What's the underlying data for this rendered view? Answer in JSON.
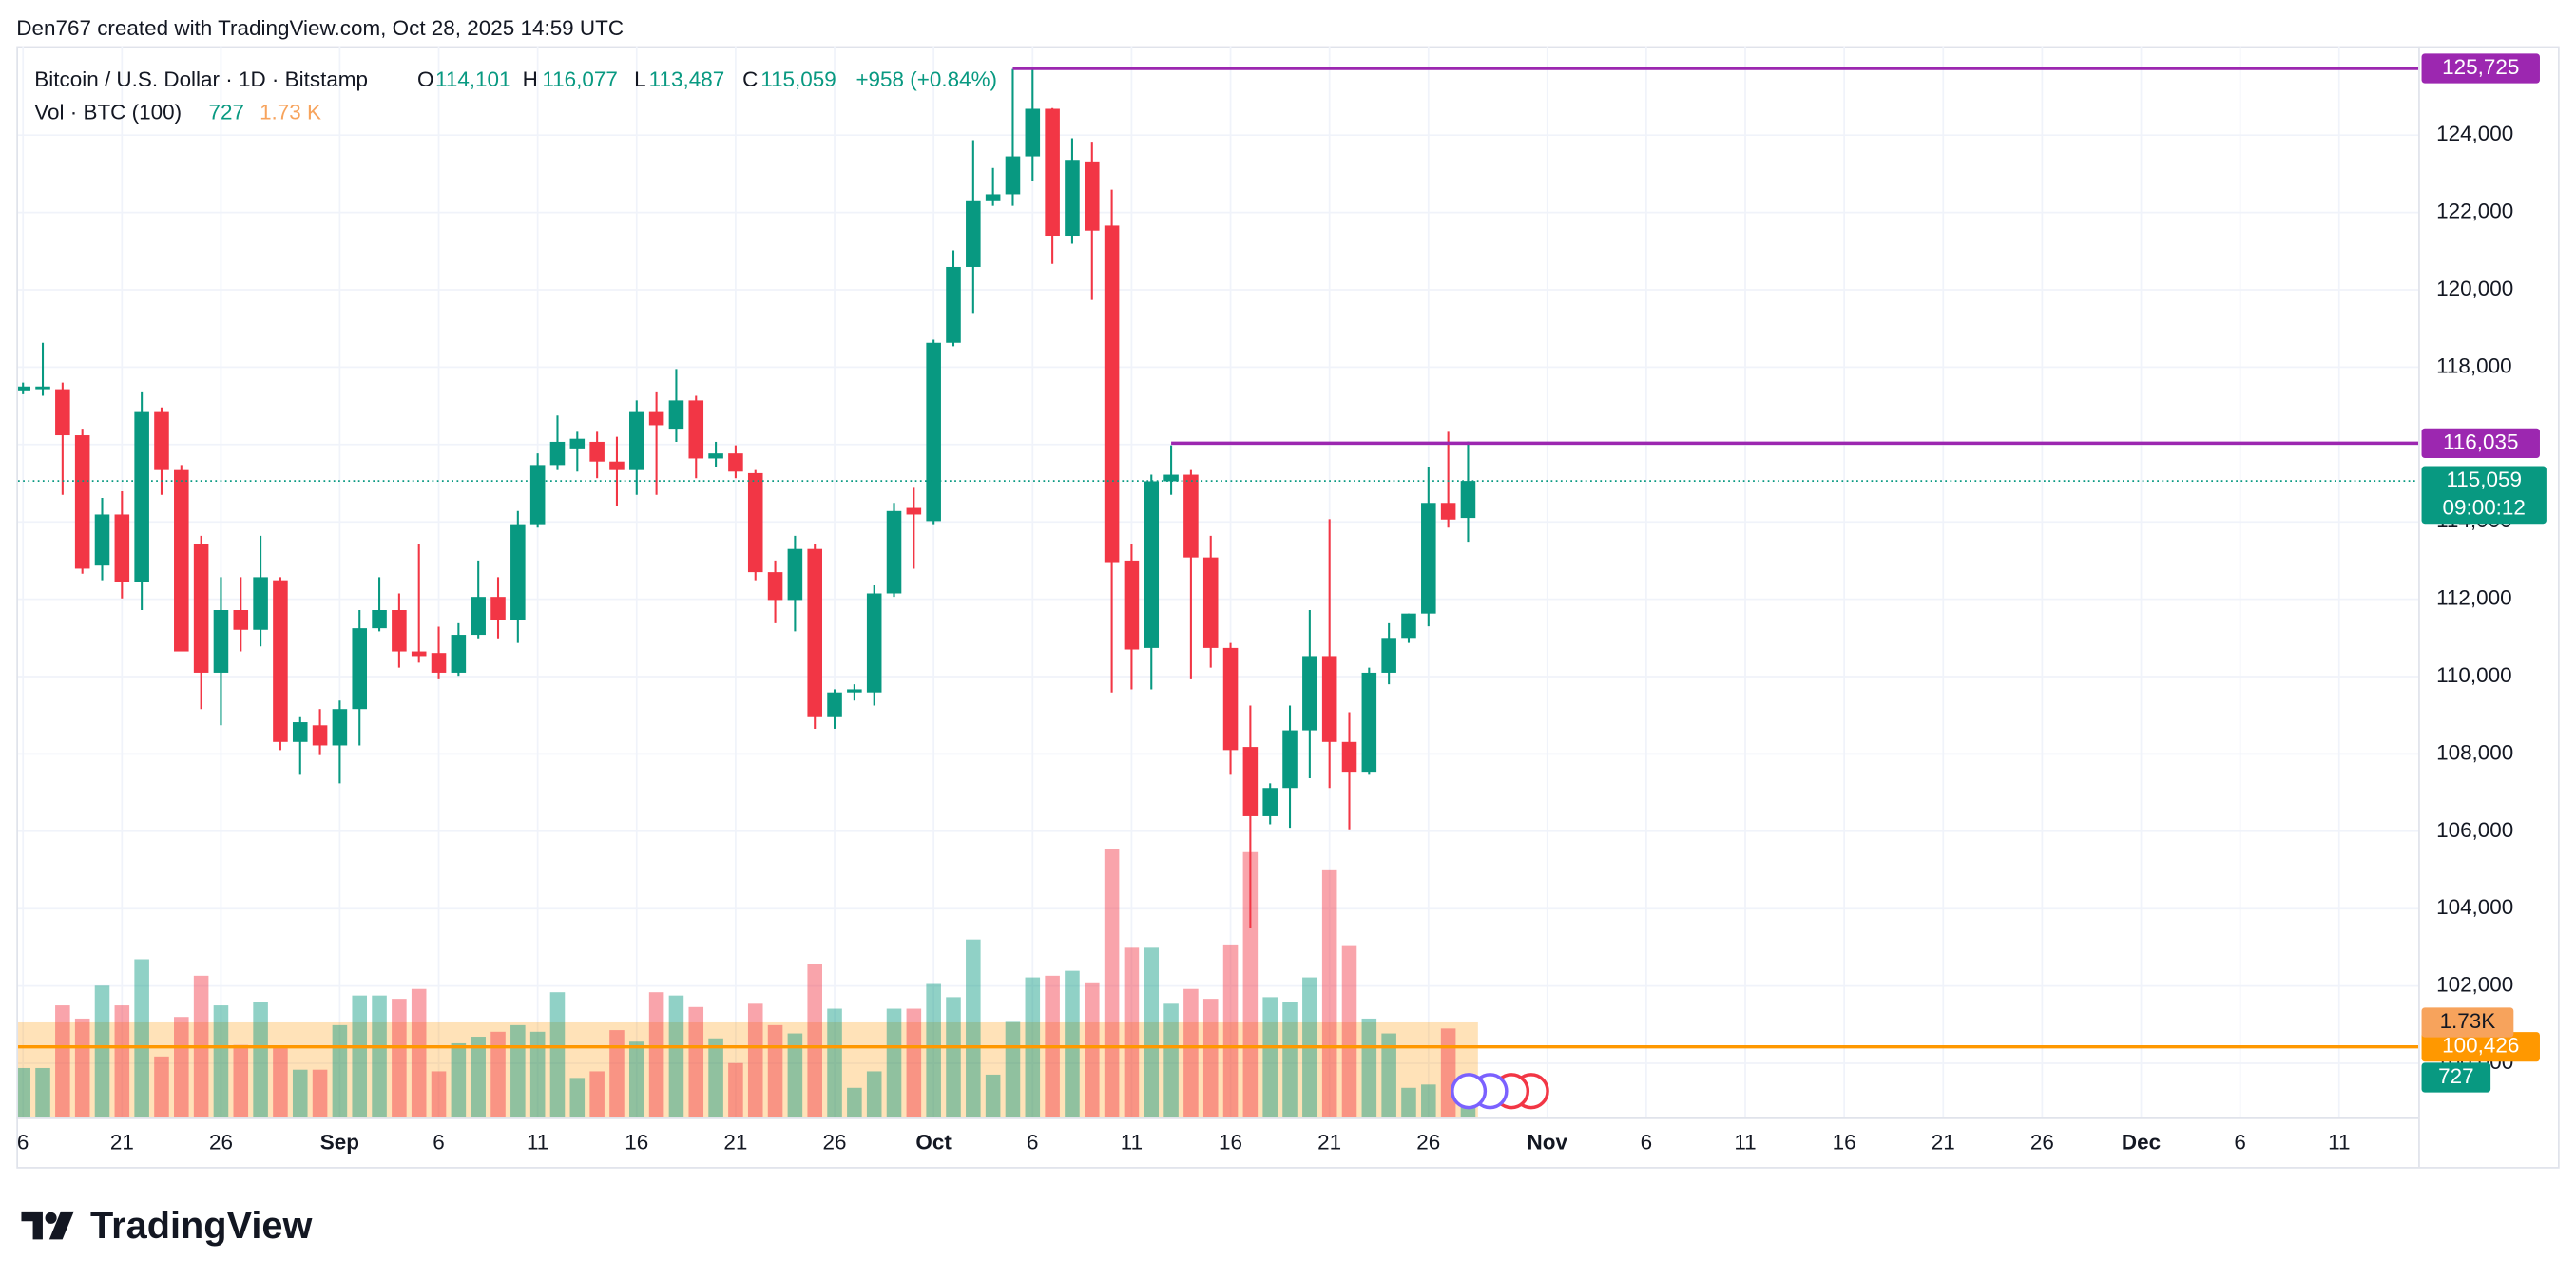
{
  "attribution": "Den767 created with TradingView.com, Oct 28, 2025 14:59 UTC",
  "logo": "TradingView",
  "chart_data": {
    "type": "candlestick",
    "legend": {
      "symbol": "Bitcoin / U.S. Dollar · 1D · Bitstamp",
      "o": "O",
      "open": "114,101",
      "h": "H",
      "high": "116,077",
      "l": "L",
      "low": "113,487",
      "c": "C",
      "close": "115,059",
      "change": "+958 (+0.84%)",
      "volume_title": "Vol · BTC (100)",
      "volume": "727",
      "volume_ma": "1.73 K"
    },
    "dates": [
      "Aug 16",
      "Aug 17",
      "Aug 18",
      "Aug 19",
      "Aug 20",
      "Aug 21",
      "Aug 22",
      "Aug 23",
      "Aug 24",
      "Aug 25",
      "Aug 26",
      "Aug 27",
      "Aug 28",
      "Aug 29",
      "Aug 30",
      "Aug 31",
      "Sep 1",
      "Sep 2",
      "Sep 3",
      "Sep 4",
      "Sep 5",
      "Sep 6",
      "Sep 7",
      "Sep 8",
      "Sep 9",
      "Sep 10",
      "Sep 11",
      "Sep 12",
      "Sep 13",
      "Sep 14",
      "Sep 15",
      "Sep 16",
      "Sep 17",
      "Sep 18",
      "Sep 19",
      "Sep 20",
      "Sep 21",
      "Sep 22",
      "Sep 23",
      "Sep 24",
      "Sep 25",
      "Sep 26",
      "Sep 27",
      "Sep 28",
      "Sep 29",
      "Sep 30",
      "Oct 1",
      "Oct 2",
      "Oct 3",
      "Oct 4",
      "Oct 5",
      "Oct 6",
      "Oct 7",
      "Oct 8",
      "Oct 9",
      "Oct 10",
      "Oct 11",
      "Oct 12",
      "Oct 13",
      "Oct 14",
      "Oct 15",
      "Oct 16",
      "Oct 17",
      "Oct 18",
      "Oct 19",
      "Oct 20",
      "Oct 21",
      "Oct 22",
      "Oct 23",
      "Oct 24",
      "Oct 25",
      "Oct 26",
      "Oct 27",
      "Oct 28"
    ],
    "open": [
      117400,
      117430,
      117430,
      116240,
      112870,
      114190,
      112440,
      116840,
      115340,
      113430,
      110100,
      111720,
      111210,
      112490,
      108310,
      108740,
      108220,
      109160,
      111250,
      111720,
      110650,
      110610,
      110100,
      111080,
      112060,
      111460,
      113940,
      115470,
      115900,
      116070,
      115560,
      115340,
      116840,
      116410,
      117140,
      115640,
      115770,
      115260,
      112700,
      111980,
      113300,
      108950,
      109590,
      109590,
      112150,
      114360,
      114020,
      118630,
      120590,
      122290,
      122470,
      123450,
      124680,
      121400,
      123320,
      121660,
      113000,
      110740,
      115050,
      115220,
      113080,
      110740,
      108180,
      106390,
      107120,
      108610,
      110530,
      108310,
      107540,
      110100,
      111000,
      111630,
      114490,
      114101
    ],
    "high": [
      117600,
      118630,
      117600,
      116410,
      114620,
      114790,
      117350,
      116960,
      115470,
      113640,
      112570,
      112570,
      113640,
      112570,
      108950,
      109160,
      109380,
      111720,
      112570,
      112150,
      113430,
      111290,
      111380,
      113000,
      112570,
      114280,
      115770,
      116750,
      116330,
      116330,
      116200,
      117140,
      117350,
      117950,
      117260,
      116070,
      115980,
      115340,
      113000,
      113640,
      113430,
      109670,
      109800,
      112360,
      114490,
      114880,
      118710,
      121020,
      123870,
      123150,
      125710,
      125725,
      124700,
      123920,
      123830,
      122590,
      113430,
      115220,
      115980,
      115340,
      113640,
      110870,
      109250,
      107240,
      109250,
      111720,
      114070,
      109080,
      110230,
      111380,
      111630,
      115430,
      116330,
      116077
    ],
    "low": [
      117300,
      117260,
      114700,
      112660,
      112490,
      112020,
      111720,
      114700,
      110650,
      109160,
      108740,
      110650,
      110780,
      108100,
      107460,
      107970,
      107240,
      108220,
      111170,
      110230,
      110360,
      109930,
      110020,
      110990,
      110990,
      110870,
      113850,
      115340,
      115300,
      115130,
      114410,
      114700,
      114700,
      116070,
      115130,
      115430,
      115130,
      112490,
      111380,
      111170,
      108650,
      108650,
      109380,
      109250,
      112060,
      112790,
      113940,
      118540,
      119400,
      122170,
      122170,
      122800,
      120670,
      121190,
      119740,
      109590,
      109670,
      109670,
      114700,
      109930,
      110230,
      107460,
      103490,
      106180,
      106090,
      107370,
      107120,
      106050,
      107460,
      109800,
      110870,
      111300,
      113850,
      113487
    ],
    "close": [
      117500,
      117500,
      116240,
      112790,
      114190,
      112440,
      116840,
      115340,
      110650,
      110100,
      111720,
      111210,
      112570,
      108310,
      108820,
      108220,
      109160,
      111250,
      111720,
      110650,
      110530,
      110100,
      111080,
      112060,
      111460,
      113940,
      115470,
      116070,
      116150,
      115560,
      115340,
      116840,
      116500,
      117140,
      115640,
      115770,
      115300,
      112700,
      111980,
      113300,
      108950,
      109590,
      109670,
      112150,
      114280,
      114190,
      118630,
      120590,
      122290,
      122470,
      123450,
      124680,
      121400,
      123360,
      121530,
      112960,
      110700,
      115050,
      115220,
      113080,
      110740,
      108100,
      106390,
      107120,
      108610,
      110530,
      108310,
      107540,
      110100,
      111000,
      111630,
      114490,
      114060,
      115059
    ],
    "volume": [
      900,
      900,
      2040,
      1800,
      2400,
      2040,
      2880,
      1110,
      1830,
      2580,
      2040,
      1320,
      2100,
      1290,
      870,
      870,
      1680,
      2220,
      2220,
      2160,
      2340,
      840,
      1350,
      1470,
      1560,
      1680,
      1560,
      2280,
      720,
      840,
      1590,
      1380,
      2280,
      2220,
      2010,
      1440,
      990,
      2070,
      1680,
      1530,
      2790,
      1980,
      540,
      840,
      1980,
      1980,
      2430,
      2190,
      3240,
      780,
      1740,
      2550,
      2580,
      2670,
      2460,
      4890,
      3090,
      3090,
      2070,
      2340,
      2160,
      3150,
      4830,
      2190,
      2100,
      2550,
      4500,
      3120,
      1800,
      1530,
      540,
      600,
      1620,
      727
    ],
    "volume_ma": {
      "value": 1730,
      "label": "1.73K"
    },
    "up_color": "#089981",
    "down_color": "#f23645",
    "xlim": [
      "Aug 16",
      "Dec 15"
    ],
    "xticks": [
      {
        "value": "Aug 16",
        "label": "6"
      },
      {
        "value": "Aug 21",
        "label": "21"
      },
      {
        "value": "Aug 26",
        "label": "26"
      },
      {
        "value": "Sep 1",
        "label": "Sep"
      },
      {
        "value": "Sep 6",
        "label": "6"
      },
      {
        "value": "Sep 11",
        "label": "11"
      },
      {
        "value": "Sep 16",
        "label": "16"
      },
      {
        "value": "Sep 21",
        "label": "21"
      },
      {
        "value": "Sep 26",
        "label": "26"
      },
      {
        "value": "Oct 1",
        "label": "Oct"
      },
      {
        "value": "Oct 6",
        "label": "6"
      },
      {
        "value": "Oct 11",
        "label": "11"
      },
      {
        "value": "Oct 16",
        "label": "16"
      },
      {
        "value": "Oct 21",
        "label": "21"
      },
      {
        "value": "Oct 26",
        "label": "26"
      },
      {
        "value": "Nov 1",
        "label": "Nov"
      },
      {
        "value": "Nov 6",
        "label": "6"
      },
      {
        "value": "Nov 11",
        "label": "11"
      },
      {
        "value": "Nov 16",
        "label": "16"
      },
      {
        "value": "Nov 21",
        "label": "21"
      },
      {
        "value": "Nov 26",
        "label": "26"
      },
      {
        "value": "Dec 1",
        "label": "Dec"
      },
      {
        "value": "Dec 6",
        "label": "6"
      },
      {
        "value": "Dec 11",
        "label": "11"
      }
    ],
    "ylim": [
      98600,
      126300
    ],
    "yticks": [
      {
        "value": 100000,
        "label": "100,000"
      },
      {
        "value": 102000,
        "label": "102,000"
      },
      {
        "value": 104000,
        "label": "104,000"
      },
      {
        "value": 106000,
        "label": "106,000"
      },
      {
        "value": 108000,
        "label": "108,000"
      },
      {
        "value": 110000,
        "label": "110,000"
      },
      {
        "value": 112000,
        "label": "112,000"
      },
      {
        "value": 114000,
        "label": "114,000"
      },
      {
        "value": 116000,
        "label": "116,000"
      },
      {
        "value": 118000,
        "label": "118,000"
      },
      {
        "value": 120000,
        "label": "120,000"
      },
      {
        "value": 122000,
        "label": "122,000"
      },
      {
        "value": 124000,
        "label": "124,000"
      }
    ],
    "volume_ylim": [
      0,
      19500
    ],
    "grid": true,
    "levels": [
      {
        "value": 125725,
        "label": "125,725",
        "color": "#9c27b0",
        "from": "Oct 5"
      },
      {
        "value": 116035,
        "label": "116,035",
        "color": "#9c27b0",
        "from": "Oct 13"
      },
      {
        "value": 100426,
        "label": "100,426",
        "color": "#ff9800"
      }
    ],
    "last_price": {
      "value": 115059,
      "label": "115,059",
      "countdown": "09:00:12"
    }
  }
}
